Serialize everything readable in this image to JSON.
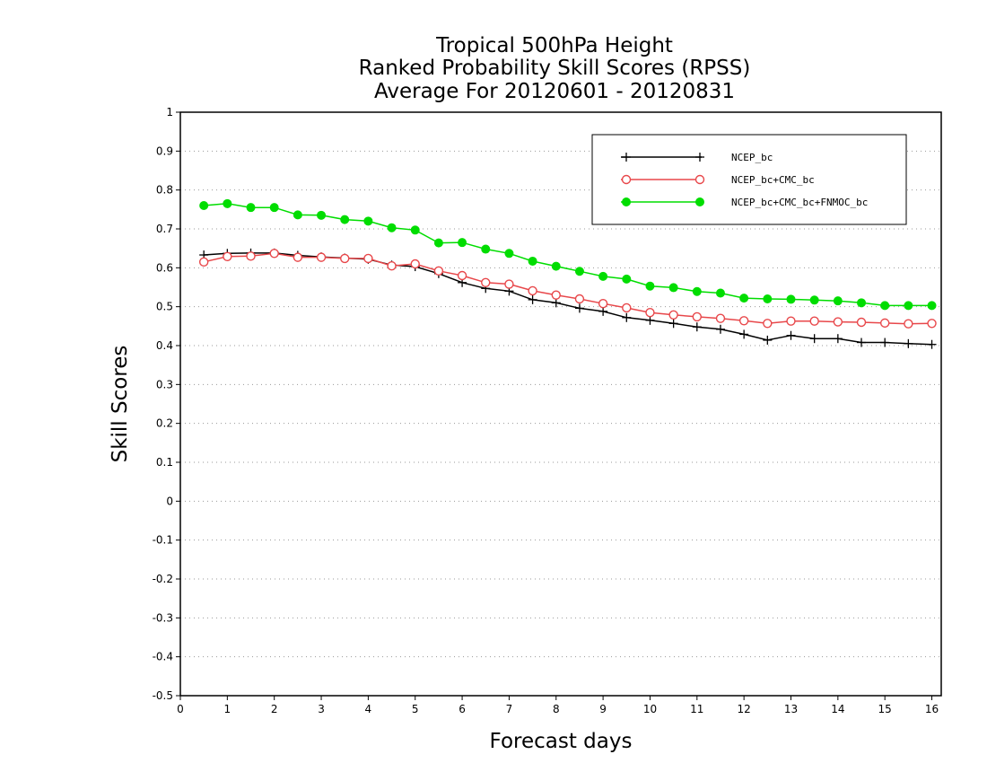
{
  "chart_data": {
    "type": "line",
    "title": [
      "Tropical 500hPa Height",
      "Ranked Probability Skill Scores (RPSS)",
      "Average For 20120601 - 20120831"
    ],
    "xlabel": "Forecast days",
    "ylabel": "Skill Scores",
    "xlim": [
      0,
      16.2
    ],
    "ylim": [
      -0.5,
      1
    ],
    "xticks": [
      "0",
      "1",
      "2",
      "3",
      "4",
      "5",
      "6",
      "7",
      "8",
      "9",
      "10",
      "11",
      "12",
      "13",
      "14",
      "15",
      "16"
    ],
    "yticks": [
      "-0.5",
      "-0.4",
      "-0.3",
      "-0.2",
      "-0.1",
      "0",
      "0.1",
      "0.2",
      "0.3",
      "0.4",
      "0.5",
      "0.6",
      "0.7",
      "0.8",
      "0.9",
      "1"
    ],
    "grid": true,
    "legend_position": "top-right",
    "x": [
      0.5,
      1,
      1.5,
      2,
      2.5,
      3,
      3.5,
      4,
      4.5,
      5,
      5.5,
      6,
      6.5,
      7,
      7.5,
      8,
      8.5,
      9,
      9.5,
      10,
      10.5,
      11,
      11.5,
      12,
      12.5,
      13,
      13.5,
      14,
      14.5,
      15,
      15.5,
      16
    ],
    "series": [
      {
        "name": "NCEP_bc",
        "color": "#000000",
        "marker": "plus",
        "values": [
          0.633,
          0.637,
          0.638,
          0.638,
          0.632,
          0.628,
          0.625,
          0.622,
          0.607,
          0.603,
          0.585,
          0.562,
          0.547,
          0.54,
          0.518,
          0.51,
          0.496,
          0.488,
          0.472,
          0.465,
          0.457,
          0.448,
          0.442,
          0.429,
          0.414,
          0.426,
          0.418,
          0.418,
          0.408,
          0.408,
          0.405,
          0.403
        ]
      },
      {
        "name": "NCEP_bc+CMC_bc",
        "color": "#e8474a",
        "marker": "open-circle",
        "values": [
          0.615,
          0.629,
          0.63,
          0.637,
          0.627,
          0.627,
          0.624,
          0.624,
          0.605,
          0.61,
          0.592,
          0.58,
          0.562,
          0.558,
          0.541,
          0.53,
          0.52,
          0.508,
          0.497,
          0.485,
          0.479,
          0.474,
          0.47,
          0.464,
          0.457,
          0.463,
          0.463,
          0.461,
          0.46,
          0.458,
          0.456,
          0.457
        ]
      },
      {
        "name": "NCEP_bc+CMC_bc+FNMOC_bc",
        "color": "#00dd00",
        "marker": "filled-circle",
        "values": [
          0.76,
          0.765,
          0.755,
          0.755,
          0.736,
          0.735,
          0.724,
          0.72,
          0.703,
          0.697,
          0.664,
          0.665,
          0.648,
          0.637,
          0.617,
          0.604,
          0.591,
          0.578,
          0.571,
          0.553,
          0.549,
          0.539,
          0.535,
          0.522,
          0.52,
          0.519,
          0.517,
          0.515,
          0.51,
          0.503,
          0.503,
          0.503
        ]
      }
    ]
  }
}
